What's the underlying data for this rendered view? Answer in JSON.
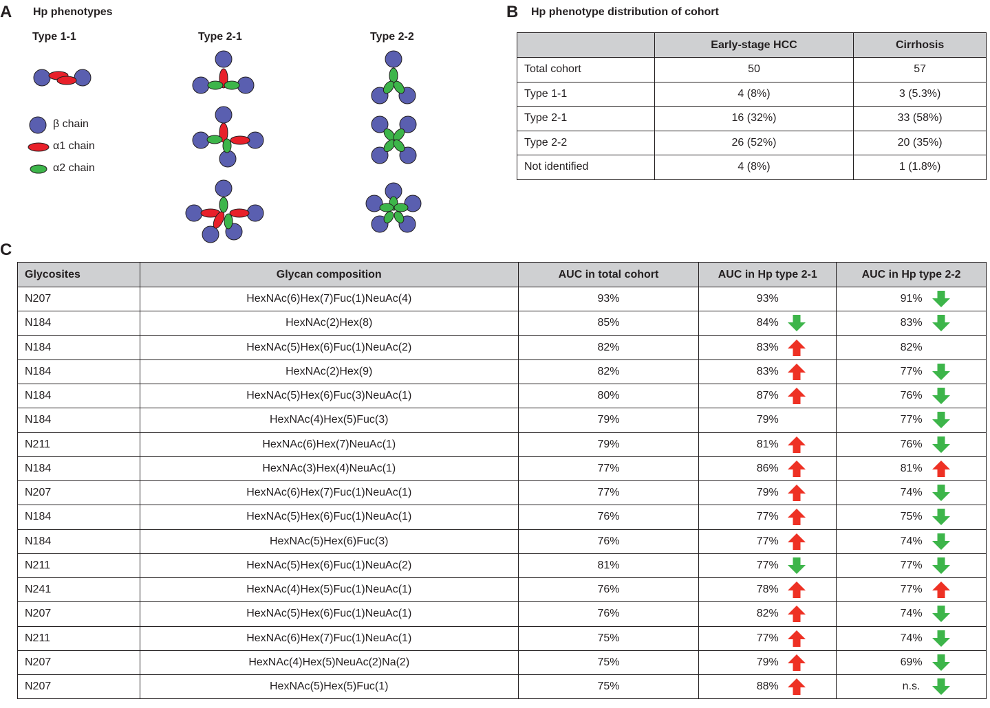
{
  "panelA": {
    "letter": "A",
    "title": "Hp phenotypes",
    "types": [
      "Type 1-1",
      "Type 2-1",
      "Type 2-2"
    ],
    "legend": [
      {
        "label": "β chain",
        "shape": "circle",
        "color": "#5a5fb0"
      },
      {
        "label": "α1 chain",
        "shape": "ellipse",
        "color": "#e8202a"
      },
      {
        "label": "α2 chain",
        "shape": "ellipse",
        "color": "#3db54a"
      }
    ]
  },
  "panelB": {
    "letter": "B",
    "title": "Hp phenotype distribution of cohort",
    "headers": [
      "",
      "Early-stage HCC",
      "Cirrhosis"
    ],
    "rows": [
      [
        "Total cohort",
        "50",
        "57"
      ],
      [
        "Type 1-1",
        "4 (8%)",
        "3 (5.3%)"
      ],
      [
        "Type 2-1",
        "16 (32%)",
        "33 (58%)"
      ],
      [
        "Type 2-2",
        "26 (52%)",
        "20 (35%)"
      ],
      [
        "Not identified",
        "4 (8%)",
        "1 (1.8%)"
      ]
    ]
  },
  "panelC": {
    "letter": "C",
    "headers": [
      "Glycosites",
      "Glycan composition",
      "AUC in total cohort",
      "AUC in Hp type 2-1",
      "AUC in Hp type 2-2"
    ],
    "rows": [
      {
        "site": "N207",
        "glycan": "HexNAc(6)Hex(7)Fuc(1)NeuAc(4)",
        "total": "93%",
        "t21": "93%",
        "t21_dir": "none",
        "t22": "91%",
        "t22_dir": "down"
      },
      {
        "site": "N184",
        "glycan": "HexNAc(2)Hex(8)",
        "total": "85%",
        "t21": "84%",
        "t21_dir": "down",
        "t22": "83%",
        "t22_dir": "down"
      },
      {
        "site": "N184",
        "glycan": "HexNAc(5)Hex(6)Fuc(1)NeuAc(2)",
        "total": "82%",
        "t21": "83%",
        "t21_dir": "up",
        "t22": "82%",
        "t22_dir": "none"
      },
      {
        "site": "N184",
        "glycan": "HexNAc(2)Hex(9)",
        "total": "82%",
        "t21": "83%",
        "t21_dir": "up",
        "t22": "77%",
        "t22_dir": "down"
      },
      {
        "site": "N184",
        "glycan": "HexNAc(5)Hex(6)Fuc(3)NeuAc(1)",
        "total": "80%",
        "t21": "87%",
        "t21_dir": "up",
        "t22": "76%",
        "t22_dir": "down"
      },
      {
        "site": "N184",
        "glycan": "HexNAc(4)Hex(5)Fuc(3)",
        "total": "79%",
        "t21": "79%",
        "t21_dir": "none",
        "t22": "77%",
        "t22_dir": "down"
      },
      {
        "site": "N211",
        "glycan": "HexNAc(6)Hex(7)NeuAc(1)",
        "total": "79%",
        "t21": "81%",
        "t21_dir": "up",
        "t22": "76%",
        "t22_dir": "down"
      },
      {
        "site": "N184",
        "glycan": "HexNAc(3)Hex(4)NeuAc(1)",
        "total": "77%",
        "t21": "86%",
        "t21_dir": "up",
        "t22": "81%",
        "t22_dir": "up"
      },
      {
        "site": "N207",
        "glycan": "HexNAc(6)Hex(7)Fuc(1)NeuAc(1)",
        "total": "77%",
        "t21": "79%",
        "t21_dir": "up",
        "t22": "74%",
        "t22_dir": "down"
      },
      {
        "site": "N184",
        "glycan": "HexNAc(5)Hex(6)Fuc(1)NeuAc(1)",
        "total": "76%",
        "t21": "77%",
        "t21_dir": "up",
        "t22": "75%",
        "t22_dir": "down"
      },
      {
        "site": "N184",
        "glycan": "HexNAc(5)Hex(6)Fuc(3)",
        "total": "76%",
        "t21": "77%",
        "t21_dir": "up",
        "t22": "74%",
        "t22_dir": "down"
      },
      {
        "site": "N211",
        "glycan": "HexNAc(5)Hex(6)Fuc(1)NeuAc(2)",
        "total": "81%",
        "t21": "77%",
        "t21_dir": "down",
        "t22": "77%",
        "t22_dir": "down"
      },
      {
        "site": "N241",
        "glycan": "HexNAc(4)Hex(5)Fuc(1)NeuAc(1)",
        "total": "76%",
        "t21": "78%",
        "t21_dir": "up",
        "t22": "77%",
        "t22_dir": "up"
      },
      {
        "site": "N207",
        "glycan": "HexNAc(5)Hex(6)Fuc(1)NeuAc(1)",
        "total": "76%",
        "t21": "82%",
        "t21_dir": "up",
        "t22": "74%",
        "t22_dir": "down"
      },
      {
        "site": "N211",
        "glycan": "HexNAc(6)Hex(7)Fuc(1)NeuAc(1)",
        "total": "75%",
        "t21": "77%",
        "t21_dir": "up",
        "t22": "74%",
        "t22_dir": "down"
      },
      {
        "site": "N207",
        "glycan": "HexNAc(4)Hex(5)NeuAc(2)Na(2)",
        "total": "75%",
        "t21": "79%",
        "t21_dir": "up",
        "t22": "69%",
        "t22_dir": "down"
      },
      {
        "site": "N207",
        "glycan": "HexNAc(5)Hex(5)Fuc(1)",
        "total": "75%",
        "t21": "88%",
        "t21_dir": "up",
        "t22": "n.s.",
        "t22_dir": "down"
      }
    ]
  },
  "colors": {
    "up": "#ee3124",
    "down": "#3db54a",
    "beta": "#5a5fb0",
    "alpha1": "#e8202a",
    "alpha2": "#3db54a",
    "header_bg": "#cfd0d2"
  }
}
